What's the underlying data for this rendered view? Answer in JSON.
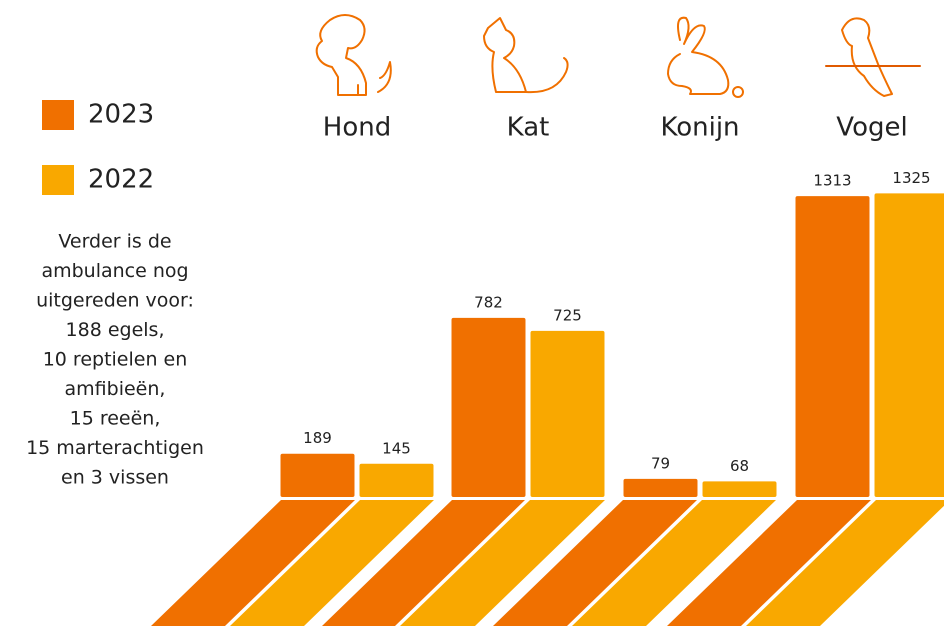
{
  "chart_data": {
    "type": "bar",
    "categories": [
      "Hond",
      "Kat",
      "Konijn",
      "Vogel"
    ],
    "series": [
      {
        "name": "2023",
        "color": "#f07000",
        "values": [
          189,
          782,
          79,
          1313
        ]
      },
      {
        "name": "2022",
        "color": "#f9a800",
        "values": [
          145,
          725,
          68,
          1325
        ]
      }
    ],
    "ylim": [
      0,
      1340
    ],
    "note": [
      "Verder is de",
      "ambulance nog",
      "uitgereden voor:",
      "188 egels,",
      "10 reptielen en",
      "amfibieën,",
      "15 reeën,",
      "15 marterachtigen",
      "en 3 vissen"
    ]
  }
}
